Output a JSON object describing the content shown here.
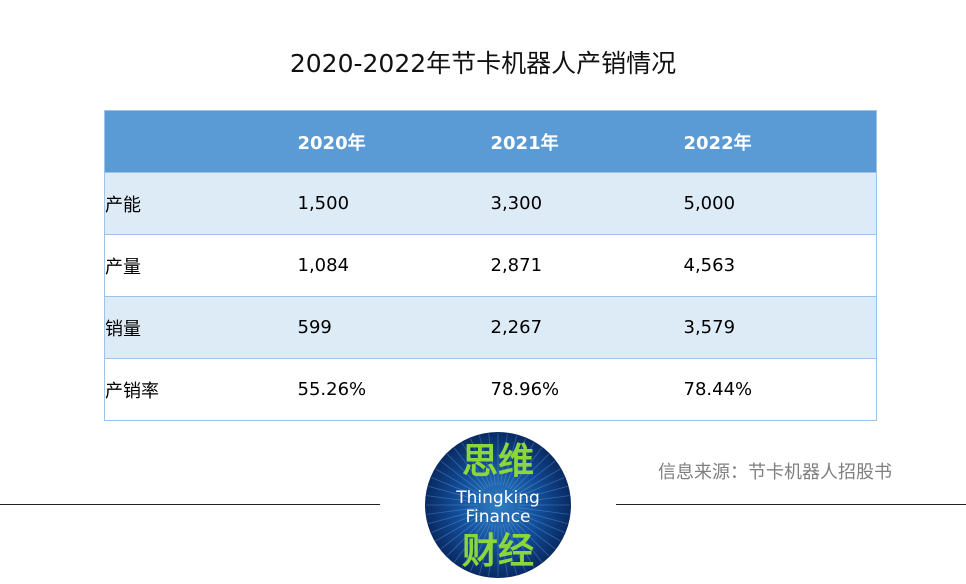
{
  "title": "2020-2022年节卡机器人产销情况",
  "table": {
    "headers": [
      "",
      "2020年",
      "2021年",
      "2022年"
    ],
    "rows": [
      [
        "产能",
        "1,500",
        "3,300",
        "5,000"
      ],
      [
        "产量",
        "1,084",
        "2,871",
        "4,563"
      ],
      [
        "销量",
        "599",
        "2,267",
        "3,579"
      ],
      [
        "产销率",
        "55.26%",
        "78.96%",
        "78.44%"
      ]
    ]
  },
  "source": "信息来源：节卡机器人招股书",
  "logo": {
    "top_text": "思维",
    "line1": "Thingking",
    "line2": "Finance",
    "bottom_text": "财经",
    "colors": {
      "circle": "#0b2f6b",
      "glyph": "#8bd63a",
      "latin": "#ffffff"
    }
  },
  "colors": {
    "header_bg": "#5b9bd5",
    "band_bg": "#ddebf7",
    "border": "#9dc3e6",
    "source": "#7f7f7f"
  }
}
